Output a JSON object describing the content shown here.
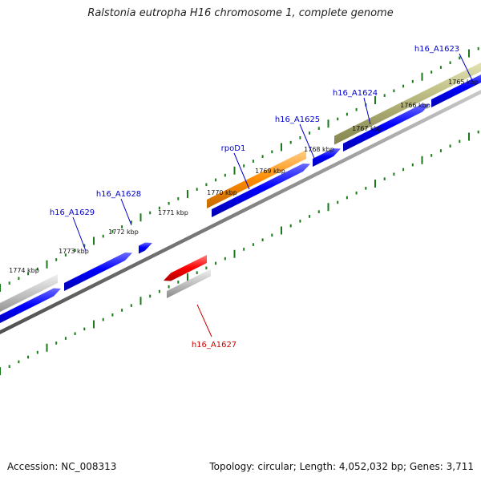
{
  "title": "Ralstonia eutropha H16 chromosome 1, complete genome",
  "footer": {
    "accession": "Accession: NC_008313",
    "topology": "Topology: circular; Length: 4,052,032 bp; Genes: 3,711"
  },
  "colors": {
    "background": "#ffffff",
    "backbone": "#808080",
    "tick": "#1a7a1a",
    "cds": "#0000ff",
    "highlight_gene": "#ff8c00",
    "reverse_gene": "#ff0000",
    "gray_feature": "#c0c0c0",
    "olive_feature": "#b3b37a",
    "label_blue": "#0000cc",
    "label_red": "#cc0000"
  },
  "kbp_labels": [
    "1765 kbp",
    "1766 kbp",
    "1767 kbp",
    "1768 kbp",
    "1769 kbp",
    "1770 kbp",
    "1771 kbp",
    "1772 kbp",
    "1773 kbp",
    "1774 kbp"
  ],
  "gene_labels": [
    {
      "text": "h16_A1623",
      "color": "blue"
    },
    {
      "text": "h16_A1624",
      "color": "blue"
    },
    {
      "text": "h16_A1625",
      "color": "blue"
    },
    {
      "text": "rpoD1",
      "color": "blue"
    },
    {
      "text": "h16_A1628",
      "color": "blue"
    },
    {
      "text": "h16_A1629",
      "color": "blue"
    },
    {
      "text": "h16_A1627",
      "color": "red"
    }
  ]
}
